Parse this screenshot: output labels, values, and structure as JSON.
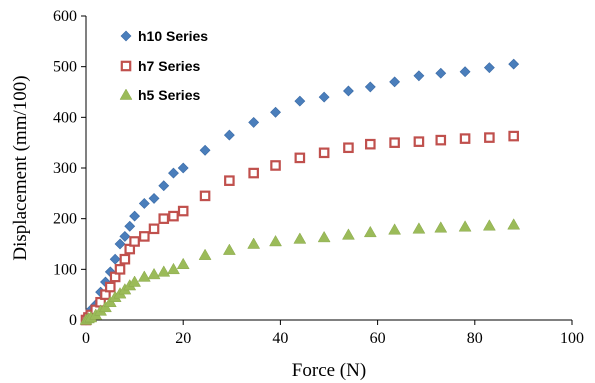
{
  "chart_data": {
    "type": "scatter",
    "xlabel": "Force (N)",
    "ylabel": "Displacement (mm/100)",
    "xlim": [
      0,
      100
    ],
    "ylim": [
      0,
      600
    ],
    "xticks": [
      0,
      20,
      40,
      60,
      80,
      100
    ],
    "yticks": [
      0,
      100,
      200,
      300,
      400,
      500,
      600
    ],
    "grid": false,
    "legend_position": "top-left",
    "series": [
      {
        "name": "h10 Series",
        "marker": "diamond",
        "color": "#4a7ebb",
        "x": [
          0,
          0.5,
          1,
          2,
          3,
          4,
          5,
          6,
          7,
          8,
          9,
          10,
          12,
          14,
          16,
          18,
          20,
          24.5,
          29.5,
          34.5,
          39,
          44,
          49,
          54,
          58.5,
          63.5,
          68.5,
          73,
          78,
          83,
          88
        ],
        "y": [
          0,
          10,
          20,
          30,
          55,
          75,
          95,
          120,
          150,
          165,
          185,
          205,
          230,
          240,
          265,
          290,
          300,
          335,
          365,
          390,
          410,
          432,
          440,
          452,
          460,
          470,
          482,
          487,
          490,
          498,
          505
        ]
      },
      {
        "name": "h7 Series",
        "marker": "square",
        "color": "#c0504d",
        "x": [
          0,
          0.5,
          1,
          2,
          3,
          4,
          5,
          6,
          7,
          8,
          9,
          10,
          12,
          14,
          16,
          18,
          20,
          24.5,
          29.5,
          34.5,
          39,
          44,
          49,
          54,
          58.5,
          63.5,
          68.5,
          73,
          78,
          83,
          88
        ],
        "y": [
          0,
          5,
          10,
          20,
          35,
          50,
          65,
          85,
          100,
          120,
          140,
          155,
          165,
          180,
          200,
          205,
          215,
          245,
          275,
          290,
          305,
          320,
          330,
          340,
          347,
          350,
          352,
          355,
          358,
          360,
          363
        ]
      },
      {
        "name": "h5 Series",
        "marker": "triangle",
        "color": "#9bbb59",
        "x": [
          0,
          0.5,
          1,
          2,
          3,
          4,
          5,
          6,
          7,
          8,
          9,
          10,
          12,
          14,
          16,
          18,
          20,
          24.5,
          29.5,
          34.5,
          39,
          44,
          49,
          54,
          58.5,
          63.5,
          68.5,
          73,
          78,
          83,
          88
        ],
        "y": [
          0,
          3,
          5,
          10,
          18,
          25,
          35,
          45,
          52,
          60,
          68,
          75,
          85,
          90,
          95,
          100,
          110,
          128,
          138,
          150,
          155,
          160,
          163,
          168,
          173,
          178,
          180,
          182,
          184,
          186,
          188
        ]
      }
    ]
  }
}
